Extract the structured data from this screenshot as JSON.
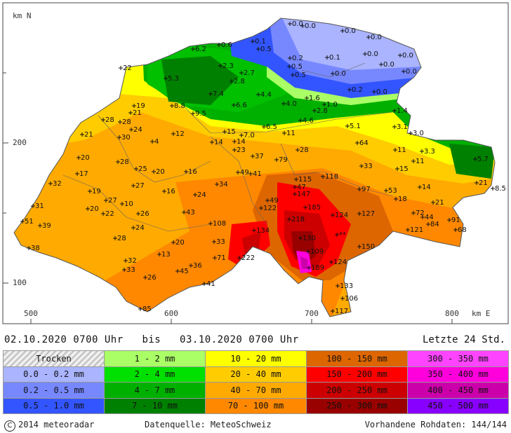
{
  "axes": {
    "y_title": "km N",
    "x_title": "km E",
    "y_ticks": [
      "200",
      "100"
    ],
    "x_ticks": [
      "500",
      "600",
      "700",
      "800"
    ]
  },
  "period": {
    "from": "02.10.2020 0700 Uhr",
    "sep": "bis",
    "to": "03.10.2020 0700 Uhr"
  },
  "window": "Letzte 24 Std.",
  "legend": [
    {
      "label": "Trocken",
      "color": "#d8d8d8"
    },
    {
      "label": "1 - 2 mm",
      "color": "#aaff66"
    },
    {
      "label": "10 - 20 mm",
      "color": "#ffff00"
    },
    {
      "label": "100 - 150 mm",
      "color": "#dd6600"
    },
    {
      "label": "300 - 350 mm",
      "color": "#ff44ff"
    },
    {
      "label": "0.0 - 0.2 mm",
      "color": "#aab4ff"
    },
    {
      "label": "2 - 4 mm",
      "color": "#00e000"
    },
    {
      "label": "20 - 40 mm",
      "color": "#ffcc00"
    },
    {
      "label": "150 - 200 mm",
      "color": "#ff0000"
    },
    {
      "label": "350 - 400 mm",
      "color": "#ff00dd"
    },
    {
      "label": "0.2 - 0.5 mm",
      "color": "#7788ff"
    },
    {
      "label": "4 - 7 mm",
      "color": "#00b000"
    },
    {
      "label": "40 - 70 mm",
      "color": "#ffaa00"
    },
    {
      "label": "200 - 250 mm",
      "color": "#cc0000"
    },
    {
      "label": "400 - 450 mm",
      "color": "#cc00aa"
    },
    {
      "label": "0.5 - 1.0 mm",
      "color": "#3355ff"
    },
    {
      "label": "7 - 10 mm",
      "color": "#008000"
    },
    {
      "label": "70 - 100 mm",
      "color": "#ff8800"
    },
    {
      "label": "250 - 300 mm",
      "color": "#990000"
    },
    {
      "label": "450 - 500 mm",
      "color": "#8800ff"
    }
  ],
  "footer": {
    "copyright_symbol": "C",
    "copyright": "2014  meteoradar",
    "source": "Datenquelle: MeteoSchweiz",
    "raw": "Vorhandene Rohdaten: 144/144"
  },
  "stations": [
    {
      "v": "0.0",
      "x": 413,
      "y": 34
    },
    {
      "v": "0.0",
      "x": 431,
      "y": 37
    },
    {
      "v": "0.0",
      "x": 488,
      "y": 44
    },
    {
      "v": "0.0",
      "x": 525,
      "y": 53
    },
    {
      "v": "0.1",
      "x": 360,
      "y": 59
    },
    {
      "v": "0.5",
      "x": 368,
      "y": 70
    },
    {
      "v": "0.6",
      "x": 312,
      "y": 64
    },
    {
      "v": "6.2",
      "x": 275,
      "y": 70
    },
    {
      "v": "0.2",
      "x": 413,
      "y": 83
    },
    {
      "v": "0.1",
      "x": 466,
      "y": 82
    },
    {
      "v": "0.0",
      "x": 520,
      "y": 77
    },
    {
      "v": "0.0",
      "x": 570,
      "y": 79
    },
    {
      "v": "0.5",
      "x": 412,
      "y": 95
    },
    {
      "v": "0.0",
      "x": 543,
      "y": 92
    },
    {
      "v": "0.0",
      "x": 575,
      "y": 102
    },
    {
      "v": "22",
      "x": 172,
      "y": 97
    },
    {
      "v": "2.3",
      "x": 314,
      "y": 94
    },
    {
      "v": "2.7",
      "x": 344,
      "y": 104
    },
    {
      "v": "0.5",
      "x": 417,
      "y": 107
    },
    {
      "v": "0.0",
      "x": 474,
      "y": 105
    },
    {
      "v": "5.3",
      "x": 236,
      "y": 112
    },
    {
      "v": "2.8",
      "x": 330,
      "y": 116
    },
    {
      "v": "0.2",
      "x": 498,
      "y": 128
    },
    {
      "v": "0.0",
      "x": 533,
      "y": 131
    },
    {
      "v": "7.4",
      "x": 300,
      "y": 134
    },
    {
      "v": "4.4",
      "x": 368,
      "y": 135
    },
    {
      "v": "1.6",
      "x": 437,
      "y": 140
    },
    {
      "v": "1.0",
      "x": 462,
      "y": 149
    },
    {
      "v": "4.0",
      "x": 404,
      "y": 148
    },
    {
      "v": "6.6",
      "x": 333,
      "y": 150
    },
    {
      "v": "8.8",
      "x": 245,
      "y": 151
    },
    {
      "v": "19",
      "x": 191,
      "y": 151
    },
    {
      "v": "2.8",
      "x": 448,
      "y": 158
    },
    {
      "v": "1.4",
      "x": 562,
      "y": 158
    },
    {
      "v": "21",
      "x": 186,
      "y": 161
    },
    {
      "v": "9.5",
      "x": 275,
      "y": 162
    },
    {
      "v": "4.6",
      "x": 428,
      "y": 172
    },
    {
      "v": "28",
      "x": 147,
      "y": 171
    },
    {
      "v": "28",
      "x": 171,
      "y": 174
    },
    {
      "v": "6.5",
      "x": 376,
      "y": 181
    },
    {
      "v": "5.1",
      "x": 495,
      "y": 180
    },
    {
      "v": "3.1",
      "x": 562,
      "y": 181
    },
    {
      "v": "24",
      "x": 187,
      "y": 185
    },
    {
      "v": "15",
      "x": 320,
      "y": 188
    },
    {
      "v": "11",
      "x": 405,
      "y": 190
    },
    {
      "v": "7.0",
      "x": 344,
      "y": 193
    },
    {
      "v": "3.0",
      "x": 585,
      "y": 190
    },
    {
      "v": "21",
      "x": 117,
      "y": 192
    },
    {
      "v": "30",
      "x": 170,
      "y": 196
    },
    {
      "v": "12",
      "x": 247,
      "y": 191
    },
    {
      "v": "14",
      "x": 334,
      "y": 202
    },
    {
      "v": "14",
      "x": 302,
      "y": 203
    },
    {
      "v": "4",
      "x": 217,
      "y": 202
    },
    {
      "v": "64",
      "x": 509,
      "y": 204
    },
    {
      "v": "11",
      "x": 563,
      "y": 214
    },
    {
      "v": "23",
      "x": 334,
      "y": 214
    },
    {
      "v": "28",
      "x": 424,
      "y": 214
    },
    {
      "v": "3.3",
      "x": 601,
      "y": 216
    },
    {
      "v": "20",
      "x": 112,
      "y": 225
    },
    {
      "v": "37",
      "x": 360,
      "y": 223
    },
    {
      "v": "79",
      "x": 394,
      "y": 228
    },
    {
      "v": "11",
      "x": 589,
      "y": 230
    },
    {
      "v": "5.7",
      "x": 677,
      "y": 227
    },
    {
      "v": "28",
      "x": 168,
      "y": 231
    },
    {
      "v": "33",
      "x": 515,
      "y": 237
    },
    {
      "v": "15",
      "x": 566,
      "y": 241
    },
    {
      "v": "25",
      "x": 194,
      "y": 241
    },
    {
      "v": "20",
      "x": 219,
      "y": 245
    },
    {
      "v": "16",
      "x": 265,
      "y": 245
    },
    {
      "v": "49",
      "x": 339,
      "y": 246
    },
    {
      "v": "41",
      "x": 357,
      "y": 248
    },
    {
      "v": "17",
      "x": 110,
      "y": 248
    },
    {
      "v": "118",
      "x": 460,
      "y": 252
    },
    {
      "v": "115",
      "x": 422,
      "y": 256
    },
    {
      "v": "21",
      "x": 679,
      "y": 261
    },
    {
      "v": "8.5",
      "x": 702,
      "y": 269
    },
    {
      "v": "32",
      "x": 72,
      "y": 262
    },
    {
      "v": "34",
      "x": 309,
      "y": 263
    },
    {
      "v": "97",
      "x": 512,
      "y": 270
    },
    {
      "v": "14",
      "x": 598,
      "y": 267
    },
    {
      "v": "27",
      "x": 190,
      "y": 265
    },
    {
      "v": "16",
      "x": 234,
      "y": 273
    },
    {
      "v": "47",
      "x": 420,
      "y": 267
    },
    {
      "v": "53",
      "x": 550,
      "y": 272
    },
    {
      "v": "19",
      "x": 128,
      "y": 273
    },
    {
      "v": "147",
      "x": 420,
      "y": 277
    },
    {
      "v": "24",
      "x": 278,
      "y": 278
    },
    {
      "v": "18",
      "x": 564,
      "y": 284
    },
    {
      "v": "49",
      "x": 381,
      "y": 286
    },
    {
      "v": "27",
      "x": 151,
      "y": 286
    },
    {
      "v": "10",
      "x": 174,
      "y": 291
    },
    {
      "v": "31",
      "x": 47,
      "y": 294
    },
    {
      "v": "21",
      "x": 617,
      "y": 289
    },
    {
      "v": "20",
      "x": 125,
      "y": 298
    },
    {
      "v": "122",
      "x": 372,
      "y": 297
    },
    {
      "v": "22",
      "x": 147,
      "y": 305
    },
    {
      "v": "26",
      "x": 197,
      "y": 305
    },
    {
      "v": "43",
      "x": 262,
      "y": 303
    },
    {
      "v": "185",
      "x": 435,
      "y": 296
    },
    {
      "v": "124",
      "x": 474,
      "y": 307
    },
    {
      "v": "127",
      "x": 512,
      "y": 305
    },
    {
      "v": "72",
      "x": 589,
      "y": 304
    },
    {
      "v": "44",
      "x": 602,
      "y": 310
    },
    {
      "v": "91",
      "x": 640,
      "y": 314
    },
    {
      "v": "51",
      "x": 32,
      "y": 316
    },
    {
      "v": "218",
      "x": 412,
      "y": 313
    },
    {
      "v": "108",
      "x": 300,
      "y": 319
    },
    {
      "v": "84",
      "x": 610,
      "y": 320
    },
    {
      "v": "39",
      "x": 57,
      "y": 322
    },
    {
      "v": "24",
      "x": 190,
      "y": 325
    },
    {
      "v": "134",
      "x": 362,
      "y": 329
    },
    {
      "v": "68",
      "x": 649,
      "y": 328
    },
    {
      "v": "121",
      "x": 581,
      "y": 328
    },
    {
      "v": "28",
      "x": 164,
      "y": 340
    },
    {
      "v": "130",
      "x": 428,
      "y": 340
    },
    {
      "v": "**",
      "x": 480,
      "y": 335
    },
    {
      "v": "20",
      "x": 247,
      "y": 346
    },
    {
      "v": "33",
      "x": 305,
      "y": 345
    },
    {
      "v": "150",
      "x": 512,
      "y": 352
    },
    {
      "v": "38",
      "x": 41,
      "y": 354
    },
    {
      "v": "13",
      "x": 227,
      "y": 363
    },
    {
      "v": "109",
      "x": 439,
      "y": 359
    },
    {
      "v": "71",
      "x": 306,
      "y": 368
    },
    {
      "v": "222",
      "x": 341,
      "y": 368
    },
    {
      "v": "32",
      "x": 179,
      "y": 372
    },
    {
      "v": "124",
      "x": 472,
      "y": 374
    },
    {
      "v": "36",
      "x": 272,
      "y": 379
    },
    {
      "v": "33",
      "x": 177,
      "y": 385
    },
    {
      "v": "45",
      "x": 253,
      "y": 387
    },
    {
      "v": "189",
      "x": 440,
      "y": 382
    },
    {
      "v": "26",
      "x": 207,
      "y": 396
    },
    {
      "v": "41",
      "x": 291,
      "y": 405
    },
    {
      "v": "133",
      "x": 481,
      "y": 408
    },
    {
      "v": "106",
      "x": 488,
      "y": 426
    },
    {
      "v": "85",
      "x": 200,
      "y": 441
    },
    {
      "v": "117",
      "x": 474,
      "y": 444
    }
  ]
}
